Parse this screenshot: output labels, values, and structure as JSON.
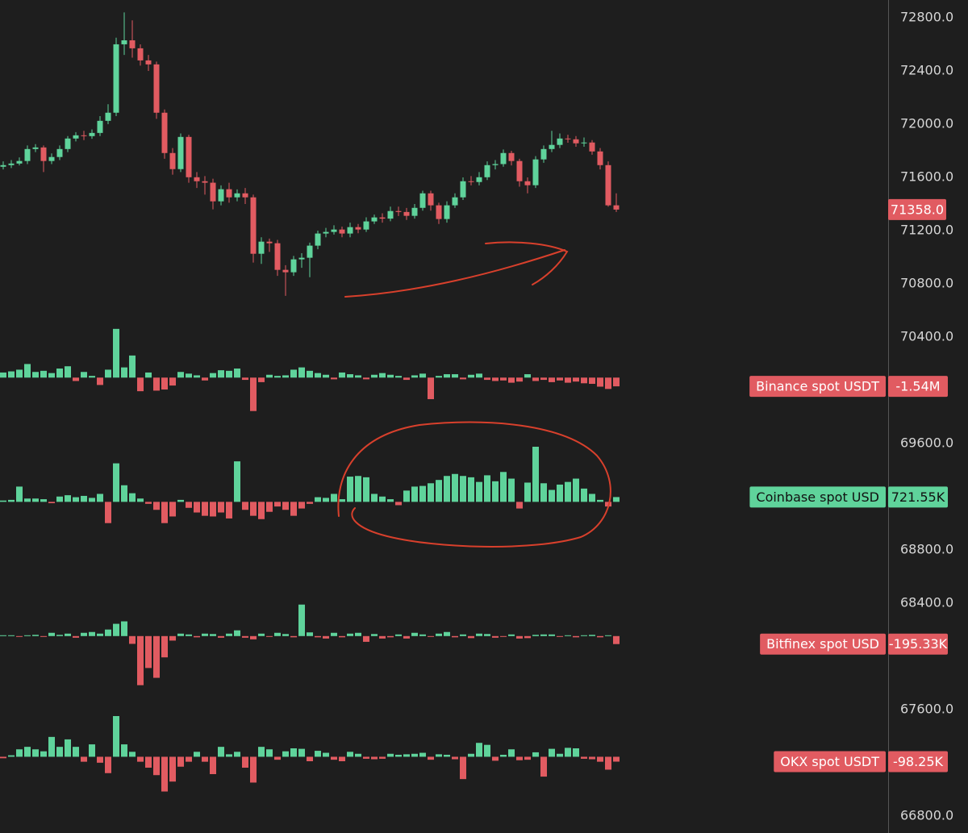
{
  "chart_data": {
    "type": "candlestick",
    "ylim": [
      66673,
      72933
    ],
    "yticks": [
      {
        "value": 72800,
        "label": "72800.0"
      },
      {
        "value": 72400,
        "label": "72400.0"
      },
      {
        "value": 72000,
        "label": "72000.0"
      },
      {
        "value": 71600,
        "label": "71600.0"
      },
      {
        "value": 71200,
        "label": "71200.0"
      },
      {
        "value": 70800,
        "label": "70800.0"
      },
      {
        "value": 70400,
        "label": "70400.0"
      },
      {
        "value": 69600,
        "label": "69600.0"
      },
      {
        "value": 68800,
        "label": "68800.0"
      },
      {
        "value": 68400,
        "label": "68400.0"
      },
      {
        "value": 67600,
        "label": "67600.0"
      },
      {
        "value": 66800,
        "label": "66800.0"
      }
    ],
    "up_color": "#5fd39b",
    "down_color": "#e15b61",
    "open": [
      71680,
      71692,
      71704,
      71723,
      71813,
      71825,
      71723,
      71753,
      71813,
      71892,
      71916,
      71910,
      71934,
      72025,
      72086,
      72600,
      72630,
      72570,
      72479,
      72449,
      72086,
      71783,
      71662,
      71904,
      71601,
      71571,
      71560,
      71420,
      71511,
      71450,
      71480,
      71450,
      71026,
      71117,
      71105,
      70905,
      70887,
      70984,
      70996,
      71087,
      71178,
      71190,
      71208,
      71178,
      71226,
      71208,
      71269,
      71299,
      71290,
      71347,
      71340,
      71311,
      71371,
      71480,
      71390,
      71287,
      71390,
      71450,
      71571,
      71565,
      71601,
      71692,
      71700,
      71783,
      71723,
      71571,
      71541,
      71735,
      71813,
      71844,
      71892,
      71886,
      71856,
      71862,
      71795,
      71692,
      71390
    ],
    "high": [
      71720,
      71730,
      71750,
      71840,
      71850,
      71840,
      71780,
      71840,
      71910,
      71940,
      71950,
      71960,
      72060,
      72150,
      72650,
      72840,
      72780,
      72600,
      72520,
      72470,
      72110,
      71820,
      71930,
      71920,
      71640,
      71610,
      71590,
      71540,
      71560,
      71510,
      71520,
      71470,
      71150,
      71140,
      71130,
      70940,
      71010,
      71030,
      71110,
      71200,
      71220,
      71240,
      71230,
      71260,
      71250,
      71300,
      71320,
      71330,
      71380,
      71380,
      71370,
      71400,
      71500,
      71500,
      71410,
      71420,
      71480,
      71600,
      71610,
      71640,
      71720,
      71730,
      71810,
      71800,
      71740,
      71600,
      71760,
      71840,
      71950,
      71930,
      71920,
      71910,
      71900,
      71880,
      71820,
      71720,
      71480
    ],
    "low": [
      71660,
      71670,
      71690,
      71700,
      71790,
      71640,
      71700,
      71730,
      71790,
      71870,
      71880,
      71890,
      71910,
      72000,
      72060,
      72520,
      72500,
      72440,
      72400,
      72040,
      71740,
      71620,
      71640,
      71560,
      71520,
      71470,
      71360,
      71390,
      71410,
      71420,
      71400,
      70960,
      70950,
      71040,
      70860,
      70710,
      70860,
      70920,
      70850,
      71060,
      71150,
      71170,
      71150,
      71150,
      71180,
      71190,
      71250,
      71260,
      71270,
      71310,
      71280,
      71290,
      71350,
      71350,
      71250,
      71260,
      71370,
      71430,
      71540,
      71540,
      71580,
      71660,
      71680,
      71690,
      71530,
      71480,
      71520,
      71710,
      71790,
      71820,
      71860,
      71830,
      71830,
      71770,
      71660,
      71380,
      71340
    ],
    "close": [
      71692,
      71704,
      71723,
      71813,
      71825,
      71723,
      71753,
      71813,
      71892,
      71916,
      71910,
      71934,
      72025,
      72086,
      72600,
      72630,
      72570,
      72479,
      72449,
      72086,
      71783,
      71662,
      71904,
      71601,
      71571,
      71560,
      71420,
      71511,
      71450,
      71480,
      71450,
      71026,
      71117,
      71105,
      70905,
      70887,
      70984,
      70996,
      71087,
      71178,
      71190,
      71208,
      71178,
      71226,
      71208,
      71269,
      71299,
      71290,
      71347,
      71340,
      71311,
      71371,
      71480,
      71390,
      71287,
      71390,
      71450,
      71571,
      71565,
      71601,
      71692,
      71700,
      71783,
      71723,
      71571,
      71541,
      71735,
      71813,
      71844,
      71892,
      71886,
      71856,
      71862,
      71795,
      71692,
      71390,
      71358
    ],
    "last_price_label": "71358.0",
    "panels": [
      {
        "type": "bar",
        "name": "Binance spot USDT",
        "ylim": [
          -8500000,
          10000000
        ],
        "last_value_label": "-1.54M",
        "values": [
          900000,
          1100000,
          1400000,
          2400000,
          1000000,
          1200000,
          800000,
          1600000,
          2000000,
          -600000,
          1000000,
          300000,
          -1300000,
          1400000,
          8600000,
          1800000,
          3900000,
          -2400000,
          900000,
          -2300000,
          -2100000,
          -1400000,
          1000000,
          700000,
          400000,
          -500000,
          800000,
          1300000,
          1200000,
          1600000,
          -400000,
          -5900000,
          -800000,
          500000,
          300000,
          400000,
          1400000,
          1800000,
          1200000,
          800000,
          500000,
          -300000,
          900000,
          600000,
          400000,
          -300000,
          500000,
          800000,
          500000,
          300000,
          -400000,
          400000,
          700000,
          -3800000,
          300000,
          600000,
          600000,
          -300000,
          500000,
          700000,
          -400000,
          -600000,
          -500000,
          -900000,
          -700000,
          600000,
          -600000,
          -400000,
          -800000,
          -500000,
          -900000,
          -700000,
          -1000000,
          -1100000,
          -1600000,
          -2000000,
          -1540000
        ]
      },
      {
        "type": "bar",
        "name": "Coinbase spot USD",
        "ylim": [
          -7000000,
          10000000
        ],
        "last_value_label": "721.55K",
        "values": [
          200000,
          300000,
          2300000,
          500000,
          500000,
          400000,
          -200000,
          800000,
          1000000,
          700000,
          900000,
          600000,
          1200000,
          -3200000,
          5800000,
          2500000,
          1300000,
          500000,
          -300000,
          -1200000,
          -3200000,
          -2200000,
          300000,
          -900000,
          -1600000,
          -2100000,
          -2200000,
          -1600000,
          -2500000,
          6100000,
          -1200000,
          -2100000,
          -2600000,
          -1500000,
          -700000,
          -1200000,
          -2100000,
          -1000000,
          -300000,
          700000,
          600000,
          1200000,
          400000,
          3800000,
          3900000,
          3700000,
          1200000,
          800000,
          400000,
          -500000,
          1700000,
          2300000,
          2400000,
          2800000,
          3300000,
          3900000,
          4200000,
          3900000,
          3700000,
          3000000,
          4000000,
          3100000,
          4500000,
          3500000,
          -1000000,
          2900000,
          8300000,
          2800000,
          1800000,
          2600000,
          3000000,
          3500000,
          2000000,
          1200000,
          300000,
          -700000,
          721550
        ]
      },
      {
        "type": "bar",
        "name": "Bitfinex spot USD",
        "ylim": [
          -1600000,
          1750000
        ],
        "last_value_label": "-195.33K",
        "values": [
          20000,
          20000,
          -20000,
          20000,
          30000,
          -20000,
          80000,
          30000,
          60000,
          -40000,
          80000,
          100000,
          60000,
          160000,
          300000,
          360000,
          -190000,
          -1200000,
          -780000,
          -1020000,
          -520000,
          -110000,
          60000,
          40000,
          -30000,
          60000,
          50000,
          -40000,
          60000,
          140000,
          -40000,
          -80000,
          60000,
          -20000,
          80000,
          50000,
          -30000,
          770000,
          90000,
          -30000,
          -60000,
          80000,
          -30000,
          60000,
          80000,
          -140000,
          50000,
          -60000,
          -30000,
          40000,
          -60000,
          80000,
          40000,
          -20000,
          60000,
          100000,
          -30000,
          40000,
          -50000,
          60000,
          50000,
          -40000,
          -20000,
          40000,
          -60000,
          -50000,
          30000,
          40000,
          40000,
          -20000,
          20000,
          -30000,
          20000,
          30000,
          -30000,
          20000,
          -195330
        ]
      },
      {
        "type": "bar",
        "name": "OKX spot USDT",
        "ylim": [
          -1000000,
          950000
        ],
        "last_value_label": "-98.25K",
        "values": [
          -30000,
          30000,
          150000,
          200000,
          150000,
          110000,
          400000,
          200000,
          350000,
          200000,
          -100000,
          250000,
          -120000,
          -330000,
          820000,
          250000,
          100000,
          -100000,
          -220000,
          -370000,
          -700000,
          -500000,
          -200000,
          -100000,
          100000,
          -100000,
          -350000,
          200000,
          50000,
          100000,
          -220000,
          -520000,
          200000,
          150000,
          -60000,
          110000,
          170000,
          160000,
          -90000,
          120000,
          80000,
          -60000,
          -90000,
          100000,
          60000,
          -40000,
          -50000,
          -40000,
          60000,
          40000,
          50000,
          60000,
          80000,
          -60000,
          50000,
          40000,
          -50000,
          -450000,
          60000,
          280000,
          240000,
          -80000,
          40000,
          150000,
          -70000,
          -60000,
          90000,
          -400000,
          160000,
          60000,
          180000,
          170000,
          -40000,
          -50000,
          -100000,
          -260000,
          -98250
        ]
      }
    ]
  }
}
